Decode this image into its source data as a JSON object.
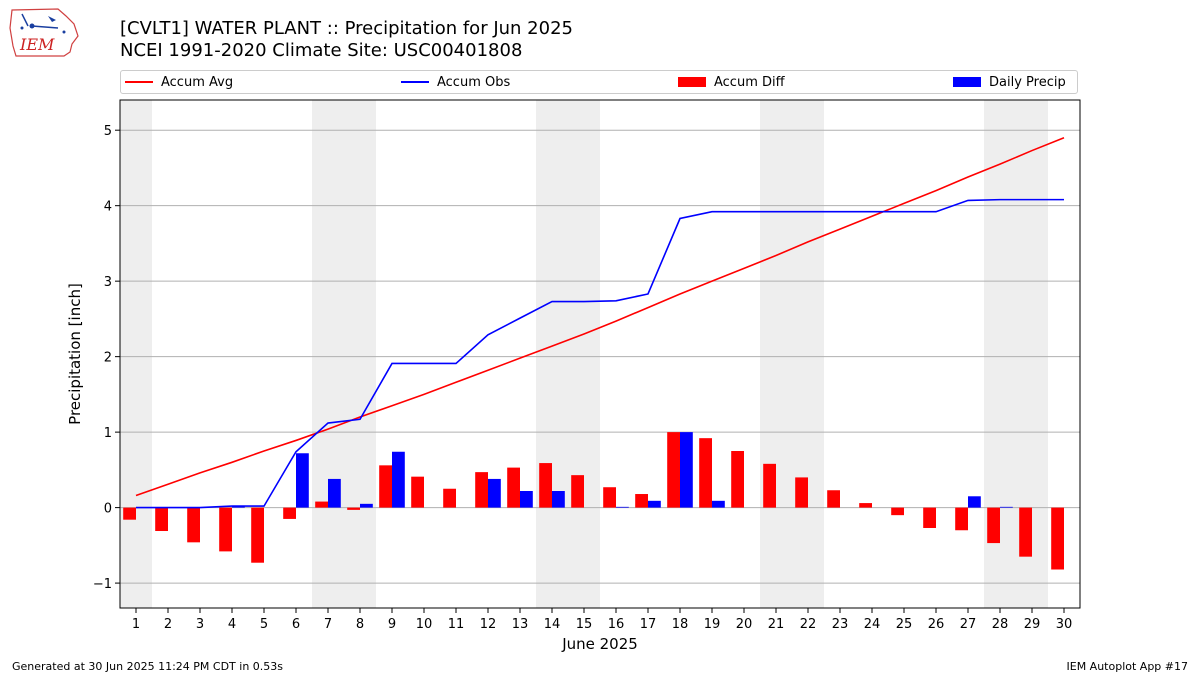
{
  "header": {
    "logo_text": "IEM",
    "title_line1": "[CVLT1] WATER PLANT :: Precipitation for Jun 2025",
    "title_line2": "NCEI 1991-2020 Climate Site: USC00401808"
  },
  "legend": {
    "accum_avg": "Accum Avg",
    "accum_obs": "Accum Obs",
    "accum_diff": "Accum Diff",
    "daily_precip": "Daily Precip"
  },
  "colors": {
    "accum_avg": "#ff0000",
    "accum_obs": "#0000ff",
    "accum_diff": "#ff0000",
    "daily_precip": "#0000ff",
    "weekend_shade": "#eeeeee",
    "grid": "#b0b0b0"
  },
  "footer": {
    "left": "Generated at 30 Jun 2025 11:24 PM CDT in 0.53s",
    "right": "IEM Autoplot App #17"
  },
  "chart_data": {
    "type": "bar",
    "title": "[CVLT1] WATER PLANT :: Precipitation for Jun 2025",
    "subtitle": "NCEI 1991-2020 Climate Site: USC00401808",
    "xlabel": "June 2025",
    "ylabel": "Precipitation [inch]",
    "x": [
      1,
      2,
      3,
      4,
      5,
      6,
      7,
      8,
      9,
      10,
      11,
      12,
      13,
      14,
      15,
      16,
      17,
      18,
      19,
      20,
      21,
      22,
      23,
      24,
      25,
      26,
      27,
      28,
      29,
      30
    ],
    "xlim": [
      0.5,
      30.5
    ],
    "ylim": [
      -1.33,
      5.4
    ],
    "yticks": [
      -1,
      0,
      1,
      2,
      3,
      4,
      5
    ],
    "ytick_labels": [
      "−1",
      "0",
      "1",
      "2",
      "3",
      "4",
      "5"
    ],
    "grid": "y",
    "legend_position": "top",
    "weekend_shading": [
      [
        0.5,
        1.5
      ],
      [
        6.5,
        8.5
      ],
      [
        13.5,
        15.5
      ],
      [
        20.5,
        22.5
      ],
      [
        27.5,
        29.5
      ]
    ],
    "series": [
      {
        "name": "Accum Avg",
        "kind": "line",
        "values": [
          0.16,
          0.31,
          0.46,
          0.6,
          0.75,
          0.89,
          1.04,
          1.2,
          1.35,
          1.5,
          1.66,
          1.82,
          1.98,
          2.14,
          2.3,
          2.47,
          2.65,
          2.83,
          3.0,
          3.17,
          3.34,
          3.52,
          3.69,
          3.86,
          4.03,
          4.2,
          4.38,
          4.55,
          4.73,
          4.9
        ]
      },
      {
        "name": "Accum Obs",
        "kind": "line",
        "values": [
          0.0,
          0.0,
          0.0,
          0.02,
          0.02,
          0.74,
          1.12,
          1.17,
          1.91,
          1.91,
          1.91,
          2.29,
          2.51,
          2.73,
          2.73,
          2.74,
          2.83,
          3.83,
          3.92,
          3.92,
          3.92,
          3.92,
          3.92,
          3.92,
          3.92,
          3.92,
          4.07,
          4.08,
          4.08,
          4.08
        ]
      },
      {
        "name": "Accum Diff",
        "kind": "bar",
        "values": [
          -0.16,
          -0.31,
          -0.46,
          -0.58,
          -0.73,
          -0.15,
          0.08,
          -0.03,
          0.56,
          0.41,
          0.25,
          0.47,
          0.53,
          0.59,
          0.43,
          0.27,
          0.18,
          1.0,
          0.92,
          0.75,
          0.58,
          0.4,
          0.23,
          0.06,
          -0.1,
          -0.27,
          -0.3,
          -0.47,
          -0.65,
          -0.82
        ]
      },
      {
        "name": "Daily Precip",
        "kind": "bar",
        "values": [
          0,
          0,
          0,
          0.02,
          0,
          0.72,
          0.38,
          0.05,
          0.74,
          0,
          0,
          0.38,
          0.22,
          0.22,
          0,
          0.01,
          0.09,
          1.0,
          0.09,
          0,
          0,
          0,
          0,
          0,
          0,
          0,
          0.15,
          0.01,
          0,
          0
        ]
      }
    ]
  }
}
